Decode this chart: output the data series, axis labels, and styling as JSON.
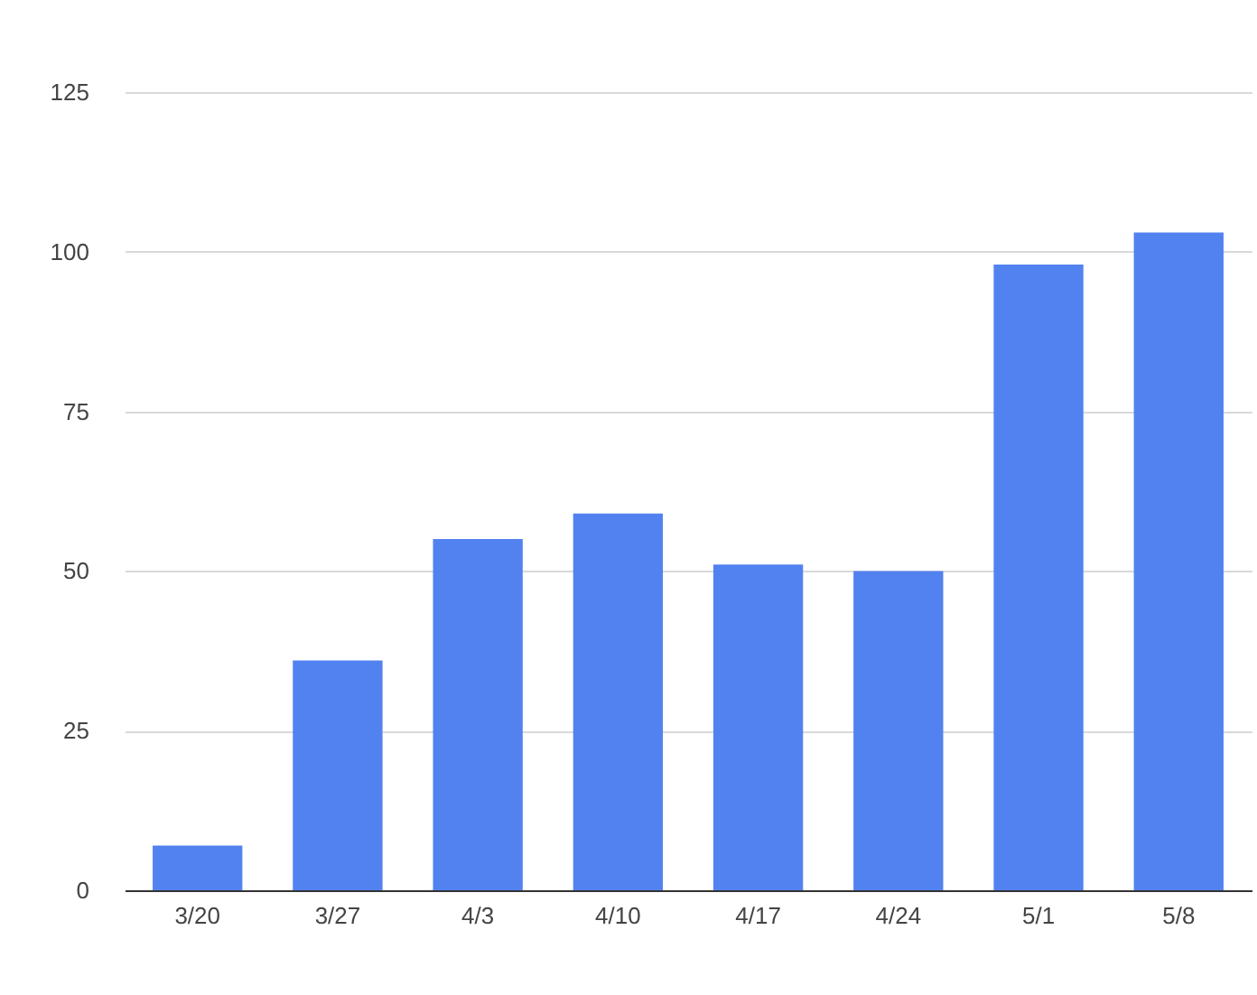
{
  "chart_data": {
    "type": "bar",
    "categories": [
      "3/20",
      "3/27",
      "4/3",
      "4/10",
      "4/17",
      "4/24",
      "5/1",
      "5/8"
    ],
    "values": [
      7,
      36,
      55,
      59,
      51,
      50,
      98,
      103
    ],
    "color": "#5282f0",
    "ylim": [
      0,
      125
    ],
    "yticks": [
      0,
      25,
      50,
      75,
      100,
      125
    ],
    "grid": "y"
  }
}
